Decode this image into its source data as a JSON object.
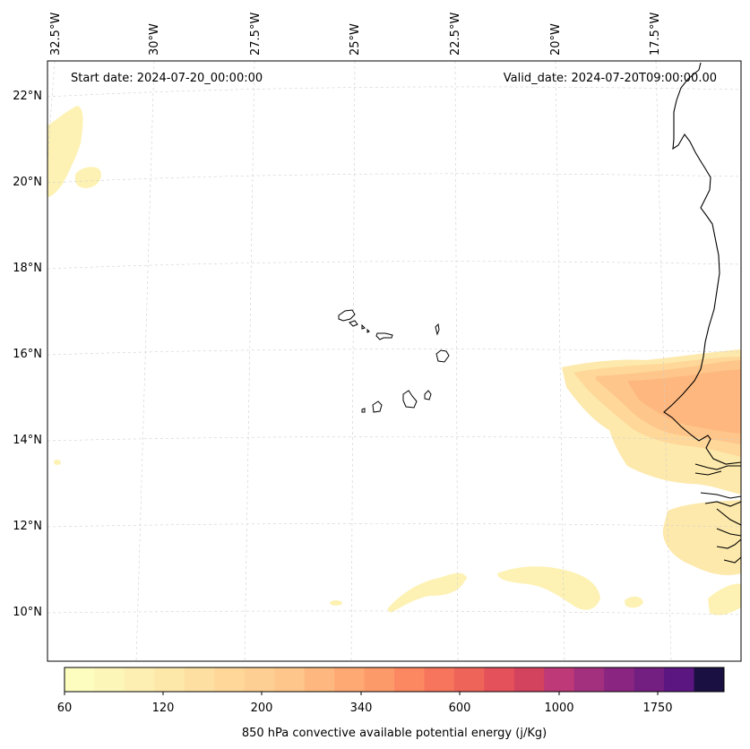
{
  "map": {
    "start_date": "Start date: 2024-07-20_00:00:00",
    "valid_date": "Valid_date: 2024-07-20T09:00:00.00",
    "lon_labels": [
      "32.5°W",
      "30°W",
      "27.5°W",
      "25°W",
      "22.5°W",
      "20°W",
      "17.5°W"
    ],
    "lat_labels": [
      "22°N",
      "20°N",
      "18°N",
      "16°N",
      "14°N",
      "12°N",
      "10°N"
    ]
  },
  "colorbar": {
    "label": "850 hPa convective available potential energy (j/Kg)",
    "tick_labels": [
      "60",
      "120",
      "200",
      "340",
      "600",
      "1000",
      "1750"
    ],
    "colors": [
      "#fcfdbf",
      "#fcf6b8",
      "#fdefb1",
      "#fde8aa",
      "#fde0a1",
      "#fed799",
      "#fecf92",
      "#fec68a",
      "#feb87f",
      "#fea973",
      "#fd9a6a",
      "#fb8861",
      "#f7755c",
      "#ef6459",
      "#e4515a",
      "#d3435e",
      "#bd3977",
      "#a3307e",
      "#8a2682",
      "#731f81",
      "#5c1682",
      "#1a1042"
    ],
    "levels": [
      60,
      80,
      100,
      120,
      140,
      160,
      180,
      200,
      240,
      280,
      340,
      420,
      500,
      600,
      700,
      850,
      1000,
      1150,
      1300,
      1500,
      1750,
      2000,
      2500
    ]
  }
}
